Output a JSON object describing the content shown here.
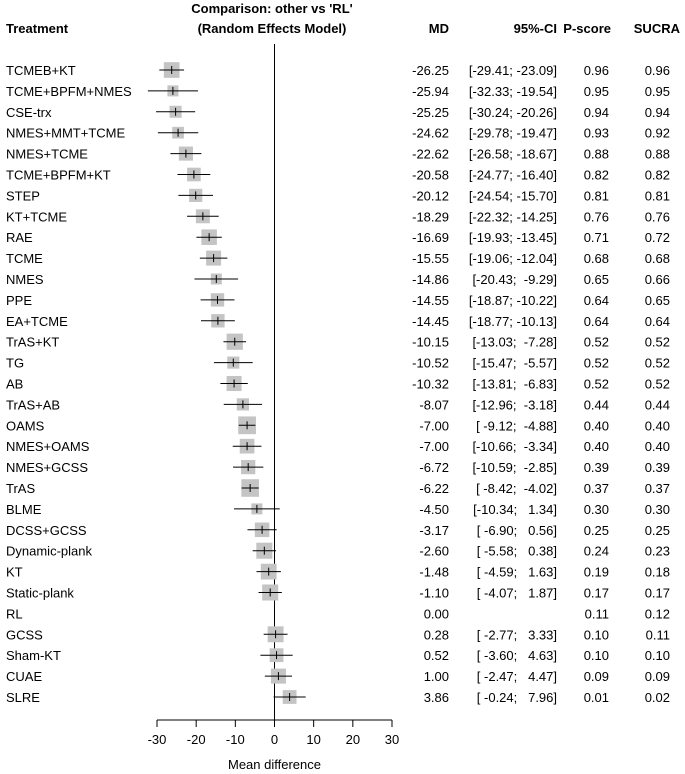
{
  "header": {
    "title_line1": "Comparison: other vs 'RL'",
    "title_line2": "(Random Effects Model)",
    "col_treatment": "Treatment",
    "col_md": "MD",
    "col_ci": "95%-CI",
    "col_pscore": "P-score",
    "col_sucra": "SUCRA"
  },
  "chart_data": {
    "type": "forest",
    "xlabel": "Mean difference",
    "xlim": [
      -30,
      30
    ],
    "xticks": [
      -30,
      -20,
      -10,
      0,
      10,
      20,
      30
    ],
    "reference": 0,
    "rows": [
      {
        "treatment": "TCMEB+KT",
        "md": -26.25,
        "lower": -29.41,
        "upper": -23.09,
        "md_text": "-26.25",
        "ci_text": "[-29.41; -23.09]",
        "pscore": "0.96",
        "sucra": "0.96"
      },
      {
        "treatment": "TCME+BPFM+NMES",
        "md": -25.94,
        "lower": -32.33,
        "upper": -19.54,
        "md_text": "-25.94",
        "ci_text": "[-32.33; -19.54]",
        "pscore": "0.95",
        "sucra": "0.95"
      },
      {
        "treatment": "CSE-trx",
        "md": -25.25,
        "lower": -30.24,
        "upper": -20.26,
        "md_text": "-25.25",
        "ci_text": "[-30.24; -20.26]",
        "pscore": "0.94",
        "sucra": "0.94"
      },
      {
        "treatment": "NMES+MMT+TCME",
        "md": -24.62,
        "lower": -29.78,
        "upper": -19.47,
        "md_text": "-24.62",
        "ci_text": "[-29.78; -19.47]",
        "pscore": "0.93",
        "sucra": "0.92"
      },
      {
        "treatment": "NMES+TCME",
        "md": -22.62,
        "lower": -26.58,
        "upper": -18.67,
        "md_text": "-22.62",
        "ci_text": "[-26.58; -18.67]",
        "pscore": "0.88",
        "sucra": "0.88"
      },
      {
        "treatment": "TCME+BPFM+KT",
        "md": -20.58,
        "lower": -24.77,
        "upper": -16.4,
        "md_text": "-20.58",
        "ci_text": "[-24.77; -16.40]",
        "pscore": "0.82",
        "sucra": "0.82"
      },
      {
        "treatment": "STEP",
        "md": -20.12,
        "lower": -24.54,
        "upper": -15.7,
        "md_text": "-20.12",
        "ci_text": "[-24.54; -15.70]",
        "pscore": "0.81",
        "sucra": "0.81"
      },
      {
        "treatment": "KT+TCME",
        "md": -18.29,
        "lower": -22.32,
        "upper": -14.25,
        "md_text": "-18.29",
        "ci_text": "[-22.32; -14.25]",
        "pscore": "0.76",
        "sucra": "0.76"
      },
      {
        "treatment": "RAE",
        "md": -16.69,
        "lower": -19.93,
        "upper": -13.45,
        "md_text": "-16.69",
        "ci_text": "[-19.93; -13.45]",
        "pscore": "0.71",
        "sucra": "0.72"
      },
      {
        "treatment": "TCME",
        "md": -15.55,
        "lower": -19.06,
        "upper": -12.04,
        "md_text": "-15.55",
        "ci_text": "[-19.06; -12.04]",
        "pscore": "0.68",
        "sucra": "0.68"
      },
      {
        "treatment": "NMES",
        "md": -14.86,
        "lower": -20.43,
        "upper": -9.29,
        "md_text": "-14.86",
        "ci_text": "[-20.43;  -9.29]",
        "pscore": "0.65",
        "sucra": "0.66"
      },
      {
        "treatment": "PPE",
        "md": -14.55,
        "lower": -18.87,
        "upper": -10.22,
        "md_text": "-14.55",
        "ci_text": "[-18.87; -10.22]",
        "pscore": "0.64",
        "sucra": "0.65"
      },
      {
        "treatment": "EA+TCME",
        "md": -14.45,
        "lower": -18.77,
        "upper": -10.13,
        "md_text": "-14.45",
        "ci_text": "[-18.77; -10.13]",
        "pscore": "0.64",
        "sucra": "0.64"
      },
      {
        "treatment": "TrAS+KT",
        "md": -10.15,
        "lower": -13.03,
        "upper": -7.28,
        "md_text": "-10.15",
        "ci_text": "[-13.03;  -7.28]",
        "pscore": "0.52",
        "sucra": "0.52"
      },
      {
        "treatment": "TG",
        "md": -10.52,
        "lower": -15.47,
        "upper": -5.57,
        "md_text": "-10.52",
        "ci_text": "[-15.47;  -5.57]",
        "pscore": "0.52",
        "sucra": "0.52"
      },
      {
        "treatment": "AB",
        "md": -10.32,
        "lower": -13.81,
        "upper": -6.83,
        "md_text": "-10.32",
        "ci_text": "[-13.81;  -6.83]",
        "pscore": "0.52",
        "sucra": "0.52"
      },
      {
        "treatment": "TrAS+AB",
        "md": -8.07,
        "lower": -12.96,
        "upper": -3.18,
        "md_text": "-8.07",
        "ci_text": "[-12.96;  -3.18]",
        "pscore": "0.44",
        "sucra": "0.44"
      },
      {
        "treatment": "OAMS",
        "md": -7.0,
        "lower": -9.12,
        "upper": -4.88,
        "md_text": "-7.00",
        "ci_text": "[ -9.12;  -4.88]",
        "pscore": "0.40",
        "sucra": "0.40"
      },
      {
        "treatment": "NMES+OAMS",
        "md": -7.0,
        "lower": -10.66,
        "upper": -3.34,
        "md_text": "-7.00",
        "ci_text": "[-10.66;  -3.34]",
        "pscore": "0.40",
        "sucra": "0.40"
      },
      {
        "treatment": "NMES+GCSS",
        "md": -6.72,
        "lower": -10.59,
        "upper": -2.85,
        "md_text": "-6.72",
        "ci_text": "[-10.59;  -2.85]",
        "pscore": "0.39",
        "sucra": "0.39"
      },
      {
        "treatment": "TrAS",
        "md": -6.22,
        "lower": -8.42,
        "upper": -4.02,
        "md_text": "-6.22",
        "ci_text": "[ -8.42;  -4.02]",
        "pscore": "0.37",
        "sucra": "0.37"
      },
      {
        "treatment": "BLME",
        "md": -4.5,
        "lower": -10.34,
        "upper": 1.34,
        "md_text": "-4.50",
        "ci_text": "[-10.34;   1.34]",
        "pscore": "0.30",
        "sucra": "0.30"
      },
      {
        "treatment": "DCSS+GCSS",
        "md": -3.17,
        "lower": -6.9,
        "upper": 0.56,
        "md_text": "-3.17",
        "ci_text": "[ -6.90;   0.56]",
        "pscore": "0.25",
        "sucra": "0.25"
      },
      {
        "treatment": "Dynamic-plank",
        "md": -2.6,
        "lower": -5.58,
        "upper": 0.38,
        "md_text": "-2.60",
        "ci_text": "[ -5.58;   0.38]",
        "pscore": "0.24",
        "sucra": "0.23"
      },
      {
        "treatment": "KT",
        "md": -1.48,
        "lower": -4.59,
        "upper": 1.63,
        "md_text": "-1.48",
        "ci_text": "[ -4.59;   1.63]",
        "pscore": "0.19",
        "sucra": "0.18"
      },
      {
        "treatment": "Static-plank",
        "md": -1.1,
        "lower": -4.07,
        "upper": 1.87,
        "md_text": "-1.10",
        "ci_text": "[ -4.07;   1.87]",
        "pscore": "0.17",
        "sucra": "0.17"
      },
      {
        "treatment": "RL",
        "md": null,
        "lower": null,
        "upper": null,
        "md_text": "0.00",
        "ci_text": "",
        "pscore": "0.11",
        "sucra": "0.12"
      },
      {
        "treatment": "GCSS",
        "md": 0.28,
        "lower": -2.77,
        "upper": 3.33,
        "md_text": "0.28",
        "ci_text": "[ -2.77;   3.33]",
        "pscore": "0.10",
        "sucra": "0.11"
      },
      {
        "treatment": "Sham-KT",
        "md": 0.52,
        "lower": -3.6,
        "upper": 4.63,
        "md_text": "0.52",
        "ci_text": "[ -3.60;   4.63]",
        "pscore": "0.10",
        "sucra": "0.10"
      },
      {
        "treatment": "CUAE",
        "md": 1.0,
        "lower": -2.47,
        "upper": 4.47,
        "md_text": "1.00",
        "ci_text": "[ -2.47;   4.47]",
        "pscore": "0.09",
        "sucra": "0.09"
      },
      {
        "treatment": "SLRE",
        "md": 3.86,
        "lower": -0.24,
        "upper": 7.96,
        "md_text": "3.86",
        "ci_text": "[ -0.24;   7.96]",
        "pscore": "0.01",
        "sucra": "0.02"
      }
    ]
  }
}
